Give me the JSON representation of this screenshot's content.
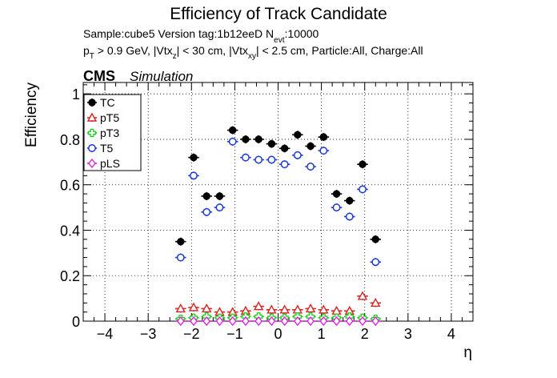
{
  "header": {
    "title": "Efficiency of Track Candidate",
    "sample_prefix": "Sample:cube5   Version tag:1b12eeD  N",
    "sample_sub": "evt",
    "sample_suffix": ":10000",
    "cut_p": "p",
    "cut_p_sub": "T",
    "cut_a": " > 0.9 GeV, |Vtx",
    "cut_a_sub": "z",
    "cut_b": "| < 30 cm, |Vtx",
    "cut_b_sub": "xy",
    "cut_c": "| < 2.5 cm, Particle:All, Charge:All",
    "cms": "CMS",
    "simulation": "Simulation"
  },
  "chart_data": {
    "type": "scatter",
    "title": "Efficiency of Track Candidate",
    "xlabel": "η",
    "ylabel": "Efficiency",
    "xlim": [
      -4.5,
      4.5
    ],
    "ylim": [
      0,
      1.05
    ],
    "xticks": [
      "−4",
      "−3",
      "−2",
      "−1",
      "0",
      "1",
      "2",
      "3",
      "4"
    ],
    "yticks": [
      "0",
      "0.2",
      "0.4",
      "0.6",
      "0.8",
      "1"
    ],
    "grid": true,
    "legend_position": "top-left",
    "bin_half_width": 0.125,
    "x": [
      -2.25,
      -1.95,
      -1.65,
      -1.35,
      -1.05,
      -0.75,
      -0.45,
      -0.15,
      0.15,
      0.45,
      0.75,
      1.05,
      1.35,
      1.65,
      1.95,
      2.25
    ],
    "series": [
      {
        "name": "TC",
        "color": "#000000",
        "marker": "filled-circle",
        "values": [
          0.35,
          0.72,
          0.55,
          0.55,
          0.84,
          0.8,
          0.8,
          0.78,
          0.76,
          0.82,
          0.77,
          0.81,
          0.56,
          0.53,
          0.69,
          0.36
        ]
      },
      {
        "name": "pT5",
        "color": "#dd2222",
        "marker": "open-triangle",
        "values": [
          0.055,
          0.06,
          0.055,
          0.04,
          0.04,
          0.045,
          0.065,
          0.05,
          0.05,
          0.05,
          0.055,
          0.05,
          0.045,
          0.045,
          0.11,
          0.08
        ]
      },
      {
        "name": "pT3",
        "color": "#22cc22",
        "marker": "open-cross",
        "values": [
          0.01,
          0.015,
          0.02,
          0.015,
          0.015,
          0.02,
          0.02,
          0.015,
          0.015,
          0.02,
          0.02,
          0.015,
          0.015,
          0.02,
          0.015,
          0.01
        ]
      },
      {
        "name": "T5",
        "color": "#1a3ad6",
        "marker": "open-circle",
        "values": [
          0.28,
          0.64,
          0.48,
          0.5,
          0.79,
          0.72,
          0.71,
          0.71,
          0.69,
          0.73,
          0.68,
          0.75,
          0.5,
          0.46,
          0.58,
          0.26
        ]
      },
      {
        "name": "pLS",
        "color": "#dd22dd",
        "marker": "open-diamond",
        "values": [
          0.0,
          0.0,
          0.0,
          0.0,
          0.0,
          0.0,
          0.0,
          0.0,
          0.0,
          0.0,
          0.0,
          0.0,
          0.0,
          0.0,
          0.0,
          0.0
        ]
      }
    ]
  }
}
